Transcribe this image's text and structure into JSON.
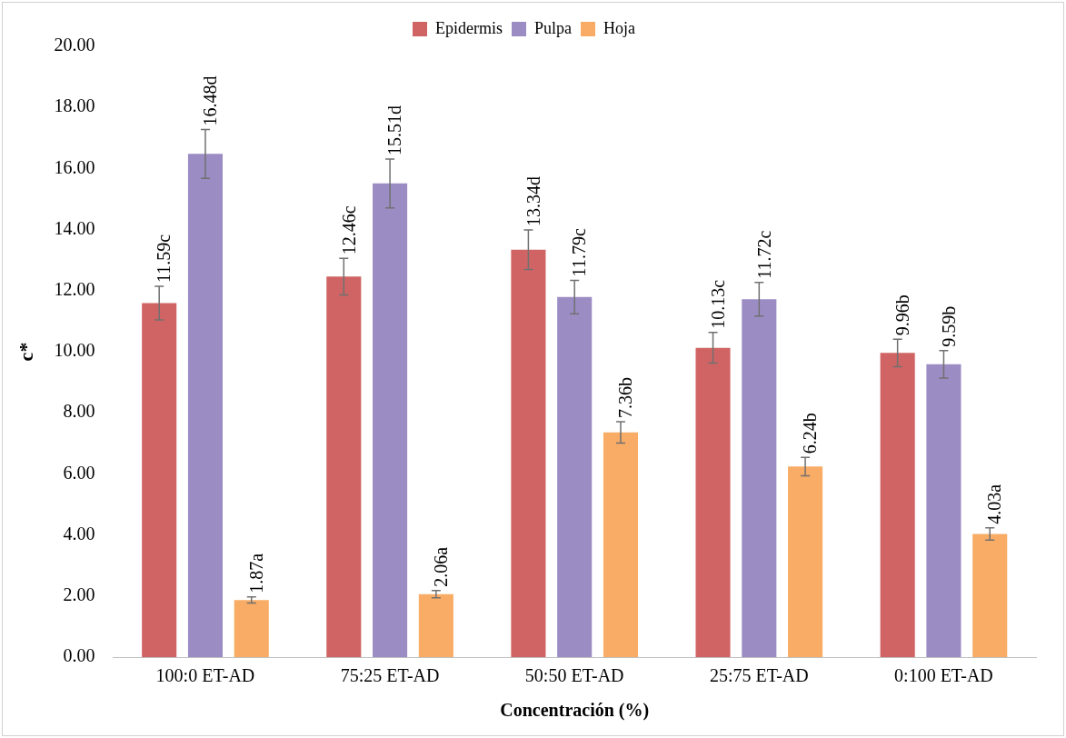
{
  "chart_data": {
    "type": "bar",
    "xlabel": "Concentración (%)",
    "ylabel": "c*",
    "categories": [
      "100:0 ET-AD",
      "75:25 ET-AD",
      "50:50 ET-AD",
      "25:75 ET-AD",
      "0:100 ET-AD"
    ],
    "series": [
      {
        "name": "Epidermis",
        "color": "#d06464",
        "values": [
          11.59,
          12.46,
          13.34,
          10.13,
          9.96
        ],
        "errors": [
          0.55,
          0.6,
          0.65,
          0.5,
          0.45
        ],
        "value_labels": [
          "11.59c",
          "12.46c",
          "13.34d",
          "10.13c",
          "9.96b"
        ]
      },
      {
        "name": "Pulpa",
        "color": "#9c8cc4",
        "values": [
          16.48,
          15.51,
          11.79,
          11.72,
          9.59
        ],
        "errors": [
          0.8,
          0.8,
          0.55,
          0.55,
          0.45
        ],
        "value_labels": [
          "16.48d",
          "15.51d",
          "11.79c",
          "11.72c",
          "9.59b"
        ]
      },
      {
        "name": "Hoja",
        "color": "#f8ac66",
        "values": [
          1.87,
          2.06,
          7.36,
          6.24,
          4.03
        ],
        "errors": [
          0.1,
          0.12,
          0.35,
          0.3,
          0.2
        ],
        "value_labels": [
          "1.87a",
          "2.06a",
          "7.36b",
          "6.24b",
          "4.03a"
        ]
      }
    ],
    "ylim": [
      0,
      20
    ],
    "yticks": [
      {
        "value": 0,
        "label": "0.00"
      },
      {
        "value": 2,
        "label": "2.00"
      },
      {
        "value": 4,
        "label": "4.00"
      },
      {
        "value": 6,
        "label": "6.00"
      },
      {
        "value": 8,
        "label": "8.00"
      },
      {
        "value": 10,
        "label": "10.00"
      },
      {
        "value": 12,
        "label": "12.00"
      },
      {
        "value": 14,
        "label": "14.00"
      },
      {
        "value": 16,
        "label": "16.00"
      },
      {
        "value": 18,
        "label": "18.00"
      },
      {
        "value": 20,
        "label": "20.00"
      }
    ],
    "grid": false,
    "legend": "top"
  }
}
